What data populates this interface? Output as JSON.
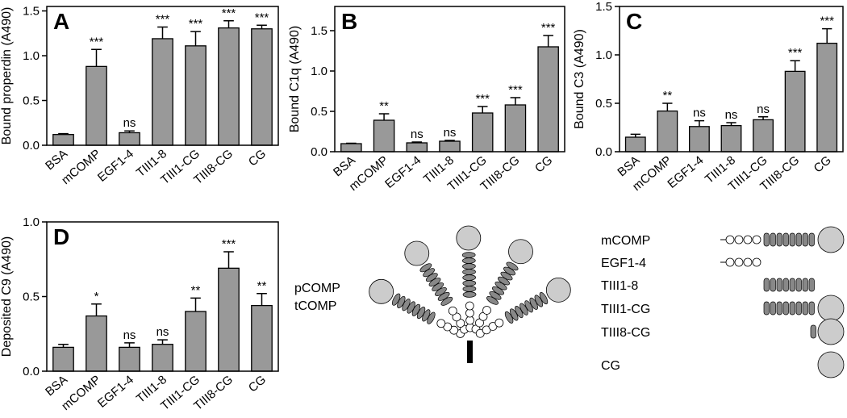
{
  "chart_data": [
    {
      "type": "bar",
      "panel": "A",
      "y_label": "Bound properdin (A490)",
      "categories": [
        "BSA",
        "mCOMP",
        "EGF1-4",
        "TIII1-8",
        "TIII1-CG",
        "TIII8-CG",
        "CG"
      ],
      "values": [
        0.12,
        0.88,
        0.14,
        1.19,
        1.11,
        1.31,
        1.3
      ],
      "errors": [
        0.01,
        0.19,
        0.02,
        0.13,
        0.16,
        0.08,
        0.04
      ],
      "annotations": [
        null,
        "***",
        "ns",
        "***",
        "***",
        "***",
        "***"
      ],
      "color": "#999999",
      "ylim": [
        0,
        1.55
      ],
      "yticks": [
        {
          "value": 0,
          "label": "0.0"
        },
        0.5,
        {
          "value": 1,
          "label": "1.0"
        },
        1.5
      ]
    },
    {
      "type": "bar",
      "panel": "B",
      "y_label": "Bound C1q (A490)",
      "categories": [
        "BSA",
        "mCOMP",
        "EGF1-4",
        "TIII1-8",
        "TIII1-CG",
        "TIII8-CG",
        "CG"
      ],
      "values": [
        0.1,
        0.39,
        0.11,
        0.13,
        0.48,
        0.58,
        1.3
      ],
      "errors": [
        0.005,
        0.08,
        0.01,
        0.01,
        0.08,
        0.09,
        0.14
      ],
      "annotations": [
        null,
        "**",
        "ns",
        "ns",
        "***",
        "***",
        "***"
      ],
      "color": "#999999",
      "ylim": [
        0,
        1.8
      ],
      "yticks": [
        {
          "value": 0,
          "label": "0.0"
        },
        0.5,
        {
          "value": 1,
          "label": "1.0"
        },
        1.5
      ]
    },
    {
      "type": "bar",
      "panel": "C",
      "y_label": "Bound C3 (A490)",
      "categories": [
        "BSA",
        "mCOMP",
        "EGF1-4",
        "TIII1-8",
        "TIII1-CG",
        "TIII8-CG",
        "CG"
      ],
      "values": [
        0.15,
        0.42,
        0.26,
        0.27,
        0.33,
        0.83,
        1.12
      ],
      "errors": [
        0.03,
        0.08,
        0.06,
        0.03,
        0.03,
        0.11,
        0.15
      ],
      "annotations": [
        null,
        "**",
        "ns",
        "ns",
        "ns",
        "***",
        "***"
      ],
      "color": "#999999",
      "ylim": [
        0,
        1.5
      ],
      "yticks": [
        {
          "value": 0,
          "label": "0.0"
        },
        0.5,
        {
          "value": 1,
          "label": "1.0"
        },
        1.5
      ]
    },
    {
      "type": "bar",
      "panel": "D",
      "y_label": "Deposited C9 (A490)",
      "categories": [
        "BSA",
        "mCOMP",
        "EGF1-4",
        "TIII1-8",
        "TIII1-CG",
        "TIII8-CG",
        "CG"
      ],
      "values": [
        0.16,
        0.37,
        0.16,
        0.18,
        0.4,
        0.69,
        0.44
      ],
      "errors": [
        0.02,
        0.08,
        0.03,
        0.03,
        0.09,
        0.11,
        0.08
      ],
      "annotations": [
        null,
        "*",
        "ns",
        "ns",
        "**",
        "***",
        "**"
      ],
      "color": "#999999",
      "ylim": [
        0,
        1.0
      ],
      "yticks": [
        {
          "value": 0,
          "label": "0.0"
        },
        0.5,
        {
          "value": 1,
          "label": "1.0"
        }
      ]
    }
  ],
  "diagram": {
    "pentamer_labels": [
      "pCOMP",
      "tCOMP"
    ],
    "construct_labels": [
      "mCOMP",
      "EGF1-4",
      "TIII1-8",
      "TIII1-CG",
      "TIII8-CG",
      "CG"
    ]
  }
}
